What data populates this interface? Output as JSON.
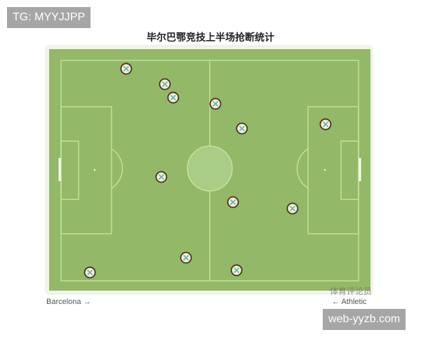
{
  "watermarks": {
    "top": "TG: MYYJJPP",
    "bottom": "web-yyzb.com",
    "pitch": "体育评论员"
  },
  "colors": {
    "grass": "#93b867",
    "lines": "#c9e89c",
    "marker_fill": "#f3eedc",
    "marker_border": "#4a3320",
    "marker_cross": "#5fb3a8"
  },
  "chart_data": {
    "type": "scatter",
    "title": "毕尔巴鄂竞技上半场抢断统计",
    "left_team": "Barcelona →",
    "right_team": "← Athletic",
    "marker_icon": "interception-x-icon",
    "points": [
      {
        "x": 21.9,
        "y": 3.8
      },
      {
        "x": 34.9,
        "y": 10.8
      },
      {
        "x": 37.7,
        "y": 16.9
      },
      {
        "x": 51.9,
        "y": 19.7
      },
      {
        "x": 60.8,
        "y": 30.9
      },
      {
        "x": 88.9,
        "y": 29.0
      },
      {
        "x": 33.7,
        "y": 52.9
      },
      {
        "x": 57.8,
        "y": 64.3
      },
      {
        "x": 77.8,
        "y": 67.2
      },
      {
        "x": 42.0,
        "y": 89.5
      },
      {
        "x": 9.7,
        "y": 96.2
      },
      {
        "x": 59.0,
        "y": 95.2
      }
    ]
  }
}
